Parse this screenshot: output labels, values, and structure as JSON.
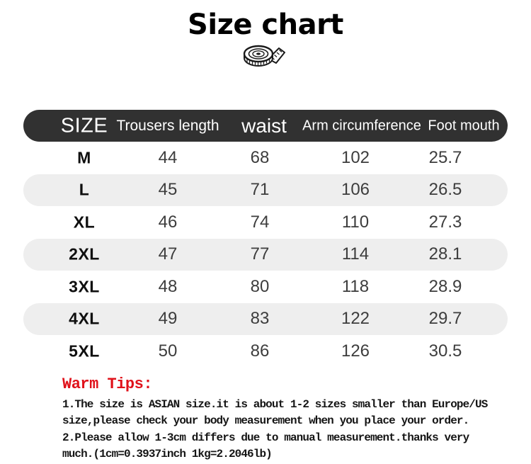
{
  "title": "Size chart",
  "table": {
    "headers": [
      "SIZE",
      "Trousers length",
      "waist",
      "Arm circumference",
      "Foot mouth"
    ],
    "rows": [
      {
        "size": "M",
        "values": [
          "44",
          "68",
          "102",
          "25.7"
        ]
      },
      {
        "size": "L",
        "values": [
          "45",
          "71",
          "106",
          "26.5"
        ]
      },
      {
        "size": "XL",
        "values": [
          "46",
          "74",
          "110",
          "27.3"
        ]
      },
      {
        "size": "2XL",
        "values": [
          "47",
          "77",
          "114",
          "28.1"
        ]
      },
      {
        "size": "3XL",
        "values": [
          "48",
          "80",
          "118",
          "28.9"
        ]
      },
      {
        "size": "4XL",
        "values": [
          "49",
          "83",
          "122",
          "29.7"
        ]
      },
      {
        "size": "5XL",
        "values": [
          "50",
          "86",
          "126",
          "30.5"
        ]
      }
    ]
  },
  "tips": {
    "heading": "Warm Tips:",
    "lines": [
      "1.The size is ASIAN size.it is about 1-2 sizes smaller than Europe/US",
      "size,please check your body measurement when you place your order.",
      "2.Please allow 1-3cm differs due to manual measurement.thanks very",
      "much.(1cm=0.3937inch 1kg=2.2046lb)"
    ]
  },
  "colors": {
    "header_bg": "#313131",
    "row_alt_bg": "#eeeeee",
    "warm_tips_red": "#e0111a"
  },
  "chart_data": {
    "type": "table",
    "title": "Size chart",
    "columns": [
      "SIZE",
      "Trousers length",
      "waist",
      "Arm circumference",
      "Foot mouth"
    ],
    "rows": [
      [
        "M",
        44,
        68,
        102,
        25.7
      ],
      [
        "L",
        45,
        71,
        106,
        26.5
      ],
      [
        "XL",
        46,
        74,
        110,
        27.3
      ],
      [
        "2XL",
        47,
        77,
        114,
        28.1
      ],
      [
        "3XL",
        48,
        80,
        118,
        28.9
      ],
      [
        "4XL",
        49,
        83,
        122,
        29.7
      ],
      [
        "5XL",
        50,
        86,
        126,
        30.5
      ]
    ]
  }
}
